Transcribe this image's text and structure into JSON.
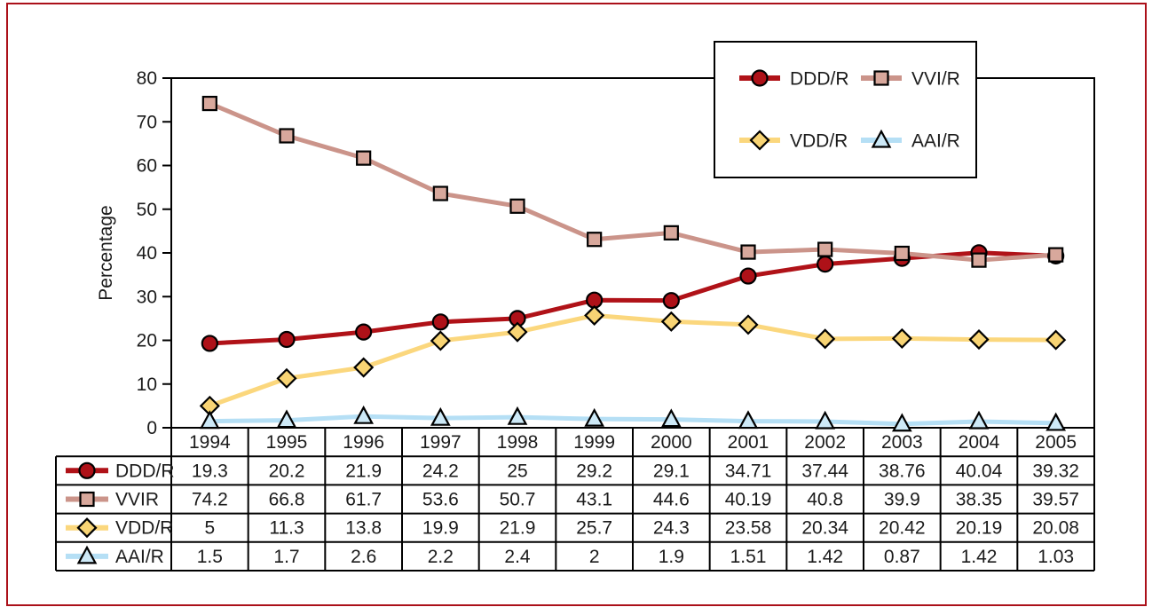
{
  "figure": {
    "frame_border_color": "#ab1019",
    "background_color": "#ffffff",
    "axis_color": "#000000",
    "text_color": "#1b1b1b"
  },
  "chart_data": {
    "type": "line",
    "title": "",
    "xlabel": "",
    "ylabel": "Percentage",
    "ylim": [
      0,
      80
    ],
    "yticks": [
      0,
      10,
      20,
      30,
      40,
      50,
      60,
      70,
      80
    ],
    "grid": false,
    "legend_position": "top-right",
    "categories": [
      "1994",
      "1995",
      "1996",
      "1997",
      "1998",
      "1999",
      "2000",
      "2001",
      "2002",
      "2003",
      "2004",
      "2005"
    ],
    "series": [
      {
        "name": "DDD/R",
        "marker": "circle",
        "line_color": "#b01218",
        "marker_fill": "#ae1118",
        "values": [
          19.3,
          20.2,
          21.9,
          24.2,
          25,
          29.2,
          29.1,
          34.71,
          37.44,
          38.76,
          40.04,
          39.32
        ]
      },
      {
        "name": "VVI/R",
        "marker": "square",
        "line_color": "#cb948a",
        "marker_fill": "#d8a89c",
        "values": [
          74.2,
          66.8,
          61.7,
          53.6,
          50.7,
          43.1,
          44.6,
          40.19,
          40.8,
          39.9,
          38.35,
          39.57
        ]
      },
      {
        "name": "VDD/R",
        "marker": "diamond",
        "line_color": "#fbd77d",
        "marker_fill": "#f8d474",
        "values": [
          5,
          11.3,
          13.8,
          19.9,
          21.9,
          25.7,
          24.3,
          23.58,
          20.34,
          20.42,
          20.19,
          20.08
        ]
      },
      {
        "name": "AAI/R",
        "marker": "triangle",
        "line_color": "#b5dff5",
        "marker_fill": "#cde9f7",
        "values": [
          1.5,
          1.7,
          2.6,
          2.2,
          2.4,
          2,
          1.9,
          1.51,
          1.42,
          0.87,
          1.42,
          1.03
        ]
      }
    ]
  },
  "table": {
    "header_row": [
      "1994",
      "1995",
      "1996",
      "1997",
      "1998",
      "1999",
      "2000",
      "2001",
      "2002",
      "2003",
      "2004",
      "2005"
    ],
    "rows": [
      {
        "label": "DDD/R",
        "values": [
          "19.3",
          "20.2",
          "21.9",
          "24.2",
          "25",
          "29.2",
          "29.1",
          "34.71",
          "37.44",
          "38.76",
          "40.04",
          "39.32"
        ]
      },
      {
        "label": "VVIR",
        "values": [
          "74.2",
          "66.8",
          "61.7",
          "53.6",
          "50.7",
          "43.1",
          "44.6",
          "40.19",
          "40.8",
          "39.9",
          "38.35",
          "39.57"
        ]
      },
      {
        "label": "VDD/R",
        "values": [
          "5",
          "11.3",
          "13.8",
          "19.9",
          "21.9",
          "25.7",
          "24.3",
          "23.58",
          "20.34",
          "20.42",
          "20.19",
          "20.08"
        ]
      },
      {
        "label": "AAI/R",
        "values": [
          "1.5",
          "1.7",
          "2.6",
          "2.2",
          "2.4",
          "2",
          "1.9",
          "1.51",
          "1.42",
          "0.87",
          "1.42",
          "1.03"
        ]
      }
    ]
  }
}
